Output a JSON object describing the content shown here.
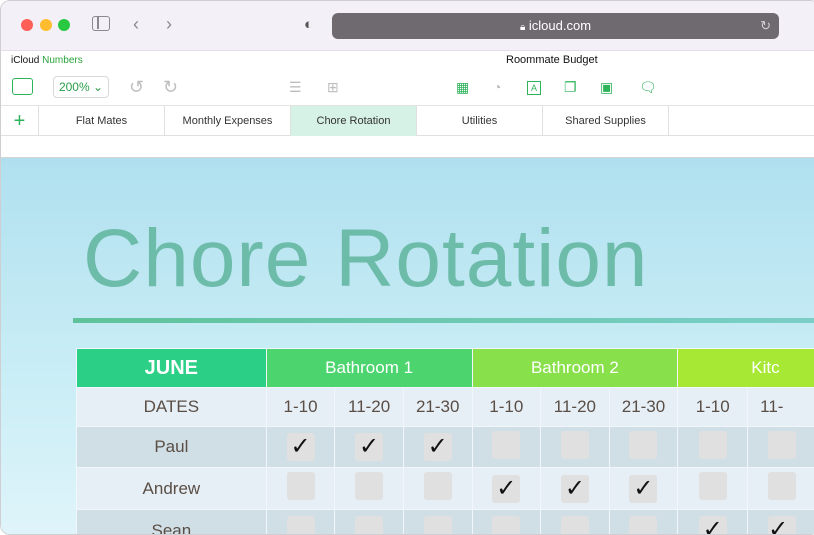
{
  "browser": {
    "url": "icloud.com",
    "colors": {
      "close": "#fe5f57",
      "minimize": "#febc2e",
      "zoom": "#28c840"
    }
  },
  "app": {
    "brand": "iCloud",
    "product": "Numbers",
    "doc_title": "Roommate Budget",
    "zoom": "200%"
  },
  "tabs": [
    {
      "label": "Flat Mates"
    },
    {
      "label": "Monthly Expenses"
    },
    {
      "label": "Chore Rotation",
      "active": true
    },
    {
      "label": "Utilities"
    },
    {
      "label": "Shared Supplies"
    }
  ],
  "sheet": {
    "title": "Chore Rotation",
    "month": "JUNE",
    "groups": [
      {
        "label": "Bathroom 1",
        "color": "#4cd46e"
      },
      {
        "label": "Bathroom 2",
        "color": "#88e04a"
      },
      {
        "label": "Kitc",
        "color": "#a6e834"
      }
    ],
    "dates_label": "DATES",
    "dates": [
      "1-10",
      "11-20",
      "21-30",
      "1-10",
      "11-20",
      "21-30",
      "1-10",
      "11-"
    ],
    "rows": [
      {
        "name": "Paul",
        "checks": [
          true,
          true,
          true,
          false,
          false,
          false,
          false,
          false
        ]
      },
      {
        "name": "Andrew",
        "checks": [
          false,
          false,
          false,
          true,
          true,
          true,
          false,
          false
        ]
      },
      {
        "name": "Sean",
        "checks": [
          false,
          false,
          false,
          false,
          false,
          false,
          true,
          true
        ]
      }
    ]
  }
}
